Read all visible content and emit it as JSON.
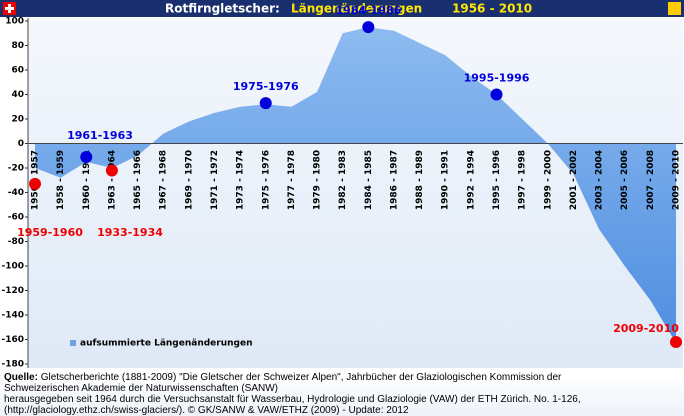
{
  "chart_data": {
    "type": "area",
    "title": "Rotfirngletscher:",
    "subtitle": "Längenänderungen",
    "period": "1956 - 2010",
    "categories": [
      "1956 - 1957",
      "1958 - 1959",
      "1960 - 1961",
      "1963 - 1964",
      "1965 - 1966",
      "1967 - 1968",
      "1969 - 1970",
      "1971 - 1972",
      "1973 - 1974",
      "1975 - 1976",
      "1977 - 1978",
      "1979 - 1980",
      "1982 - 1983",
      "1984 - 1985",
      "1986 - 1987",
      "1988 - 1989",
      "1990 - 1991",
      "1992 - 1994",
      "1995 - 1996",
      "1997 - 1998",
      "1999 - 2000",
      "2001 - 2002",
      "2003 - 2004",
      "2005 - 2006",
      "2007 - 2008",
      "2009 - 2010"
    ],
    "series": [
      {
        "name": "aufsummierte Längenänderungen",
        "color": "#6fa3e6",
        "values": [
          -20,
          -28,
          -15,
          -20,
          -10,
          8,
          18,
          25,
          30,
          32,
          30,
          42,
          90,
          95,
          92,
          82,
          72,
          55,
          40,
          20,
          0,
          -25,
          -70,
          -100,
          -128,
          -163
        ]
      }
    ],
    "ylim": [
      -180,
      100
    ],
    "yticks": [
      -180,
      -160,
      -140,
      -120,
      -100,
      -80,
      -60,
      -40,
      -20,
      0,
      20,
      40,
      60,
      80,
      100
    ],
    "legend": "lower left",
    "annotations": [
      {
        "label": "1961-1963",
        "category": "1960 - 1961",
        "value": -11,
        "color": "#0000dd"
      },
      {
        "label": "1975-1976",
        "category": "1975 - 1976",
        "value": 33,
        "color": "#0000dd"
      },
      {
        "label": "1984-1986",
        "category": "1984 - 1985",
        "value": 95,
        "color": "#0000dd"
      },
      {
        "label": "1995-1996",
        "category": "1995 - 1996",
        "value": 40,
        "color": "#0000dd"
      },
      {
        "label": "1959-1960",
        "category": "1956 - 1957",
        "value": -33,
        "color": "#ee0000"
      },
      {
        "label": "1933-1934",
        "category": "1963 - 1964",
        "value": -22,
        "color": "#ee0000"
      },
      {
        "label": "2009-2010",
        "category": "2009 - 2010",
        "value": -162,
        "color": "#ee0000"
      }
    ]
  },
  "source": {
    "label": "Quelle:",
    "lines": [
      "Gletscherberichte (1881-2009) \"Die Gletscher der Schweizer Alpen\", Jahrbücher der Glaziologischen Kommission der",
      "Schweizerischen Akademie der Naturwissenschaften (SANW)",
      "herausgegeben seit 1964 durch die Versuchsanstalt für Wasserbau, Hydrologie und Glaziologie (VAW) der ETH Zürich. No. 1-126,",
      "(http://glaciology.ethz.ch/swiss-glaciers/). © GK/SANW & VAW/ETHZ (2009) - Update: 2012"
    ]
  }
}
